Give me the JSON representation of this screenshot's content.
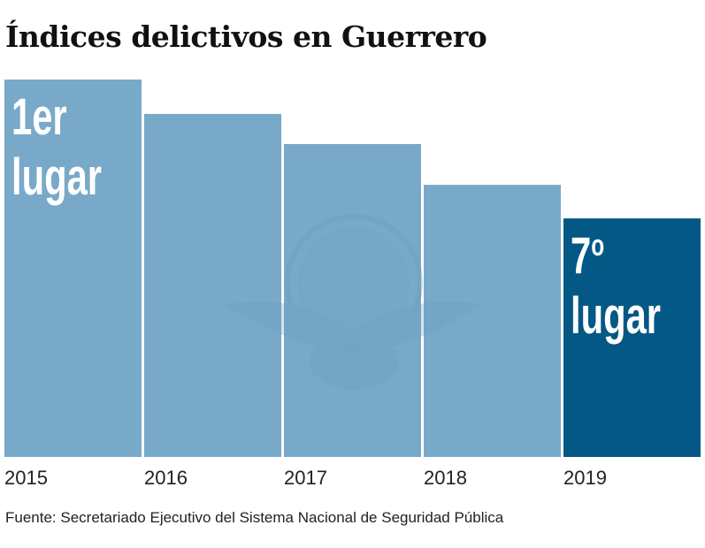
{
  "title": "Índices delictivos en Guerrero",
  "source": "Fuente: Secretariado Ejecutivo del Sistema Nacional de Seguridad Pública",
  "colors": {
    "bar_default": "#78a9c9",
    "bar_highlight": "#045885",
    "label_text": "#ffffff",
    "watermark": "#6a9cbd"
  },
  "watermark_icon": "globe-eagle-emblem",
  "chart_data": {
    "type": "bar",
    "title": "Índices delictivos en Guerrero",
    "xlabel": "",
    "ylabel": "",
    "categories": [
      "2015",
      "2016",
      "2017",
      "2018",
      "2019"
    ],
    "values": [
      100,
      90.9,
      82.9,
      72.1,
      63.2
    ],
    "value_note": "Relative index (2015 = 100), estimated from bar heights; no y-axis shown",
    "ylim": [
      0,
      100
    ],
    "grid": false,
    "legend": "none",
    "highlight_index": 4,
    "annotations": [
      {
        "category": "2015",
        "line1": "1er",
        "line2": "lugar"
      },
      {
        "category": "2019",
        "line1": "7",
        "line1_sup": "o",
        "line2": "lugar"
      }
    ]
  }
}
